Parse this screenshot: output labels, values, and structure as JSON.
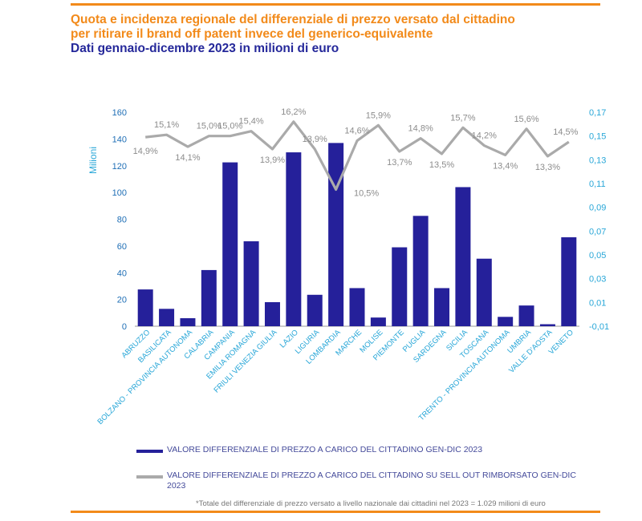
{
  "title": {
    "line1": "Quota e incidenza regionale del differenziale di prezzo versato dal cittadino",
    "line2": "per ritirare il brand off patent invece del generico-equivalente",
    "line3": "Dati gennaio-dicembre 2023 in milioni di euro"
  },
  "legend": {
    "bar_label": "VALORE DIFFERENZIALE DI PREZZO A CARICO DEL CITTADINO GEN-DIC 2023",
    "line_label": "VALORE DIFFERENZIALE DI PREZZO A CARICO DEL CITTADINO  SU SELL OUT RIMBORSATO GEN-DIC 2023"
  },
  "footnote": "*Totale del differenziale di prezzo versato a livello nazionale dai cittadini nel 2023 = 1.029 milioni di euro",
  "colors": {
    "accent": "#f28a1a",
    "bar": "#25209a",
    "line": "#aaaaaa",
    "axis_right": "#29a7d8",
    "title_blue": "#25289a"
  },
  "chart_data": {
    "type": "bar",
    "categories": [
      "ABRUZZO",
      "BASILICATA",
      "BOLZANO - PROVINCIA AUTONOMA",
      "CALABRIA",
      "CAMPANIA",
      "EMILIA ROMAGNA",
      "FRIULI VENEZIA GIULIA",
      "LAZIO",
      "LIGURIA",
      "LOMBARDIA",
      "MARCHE",
      "MOLISE",
      "PIEMONTE",
      "PUGLIA",
      "SARDEGNA",
      "SICILIA",
      "TOSCANA",
      "TRENTO - PROVINCIA AUTONOMA",
      "UMBRIA",
      "VALLE D'AOSTA",
      "VENETO"
    ],
    "ylabel": "Milioni",
    "ylim": [
      0,
      160
    ],
    "yticks": [
      "0",
      "20",
      "40",
      "60",
      "80",
      "100",
      "120",
      "140",
      "160"
    ],
    "y2lim": [
      -0.01,
      0.17
    ],
    "y2ticks": [
      "-0,01",
      "0,01",
      "0,03",
      "0,05",
      "0,07",
      "0,09",
      "0,11",
      "0,13",
      "0,15",
      "0,17"
    ],
    "series": [
      {
        "type": "bar",
        "values": [
          27.5,
          13,
          6,
          42,
          122.5,
          63.5,
          18,
          130,
          23.5,
          137,
          28.5,
          6.5,
          59,
          82.5,
          28.5,
          104,
          50.5,
          7,
          15.5,
          1.5,
          66.5
        ]
      },
      {
        "type": "line",
        "axis": "right",
        "values": [
          0.149,
          0.151,
          0.141,
          0.15,
          0.15,
          0.154,
          0.139,
          0.162,
          0.139,
          0.105,
          0.146,
          0.159,
          0.137,
          0.148,
          0.135,
          0.157,
          0.142,
          0.134,
          0.156,
          0.133,
          0.145
        ],
        "labels": [
          "14,9%",
          "15,1%",
          "14,1%",
          "15,0%",
          "15,0%",
          "15,4%",
          "13,9%",
          "16,2%",
          "13,9%",
          "10,5%",
          "14,6%",
          "15,9%",
          "13,7%",
          "14,8%",
          "13,5%",
          "15,7%",
          "14,2%",
          "13,4%",
          "15,6%",
          "13,3%",
          "14,5%"
        ]
      }
    ],
    "grid": false,
    "legend_position": "bottom"
  }
}
